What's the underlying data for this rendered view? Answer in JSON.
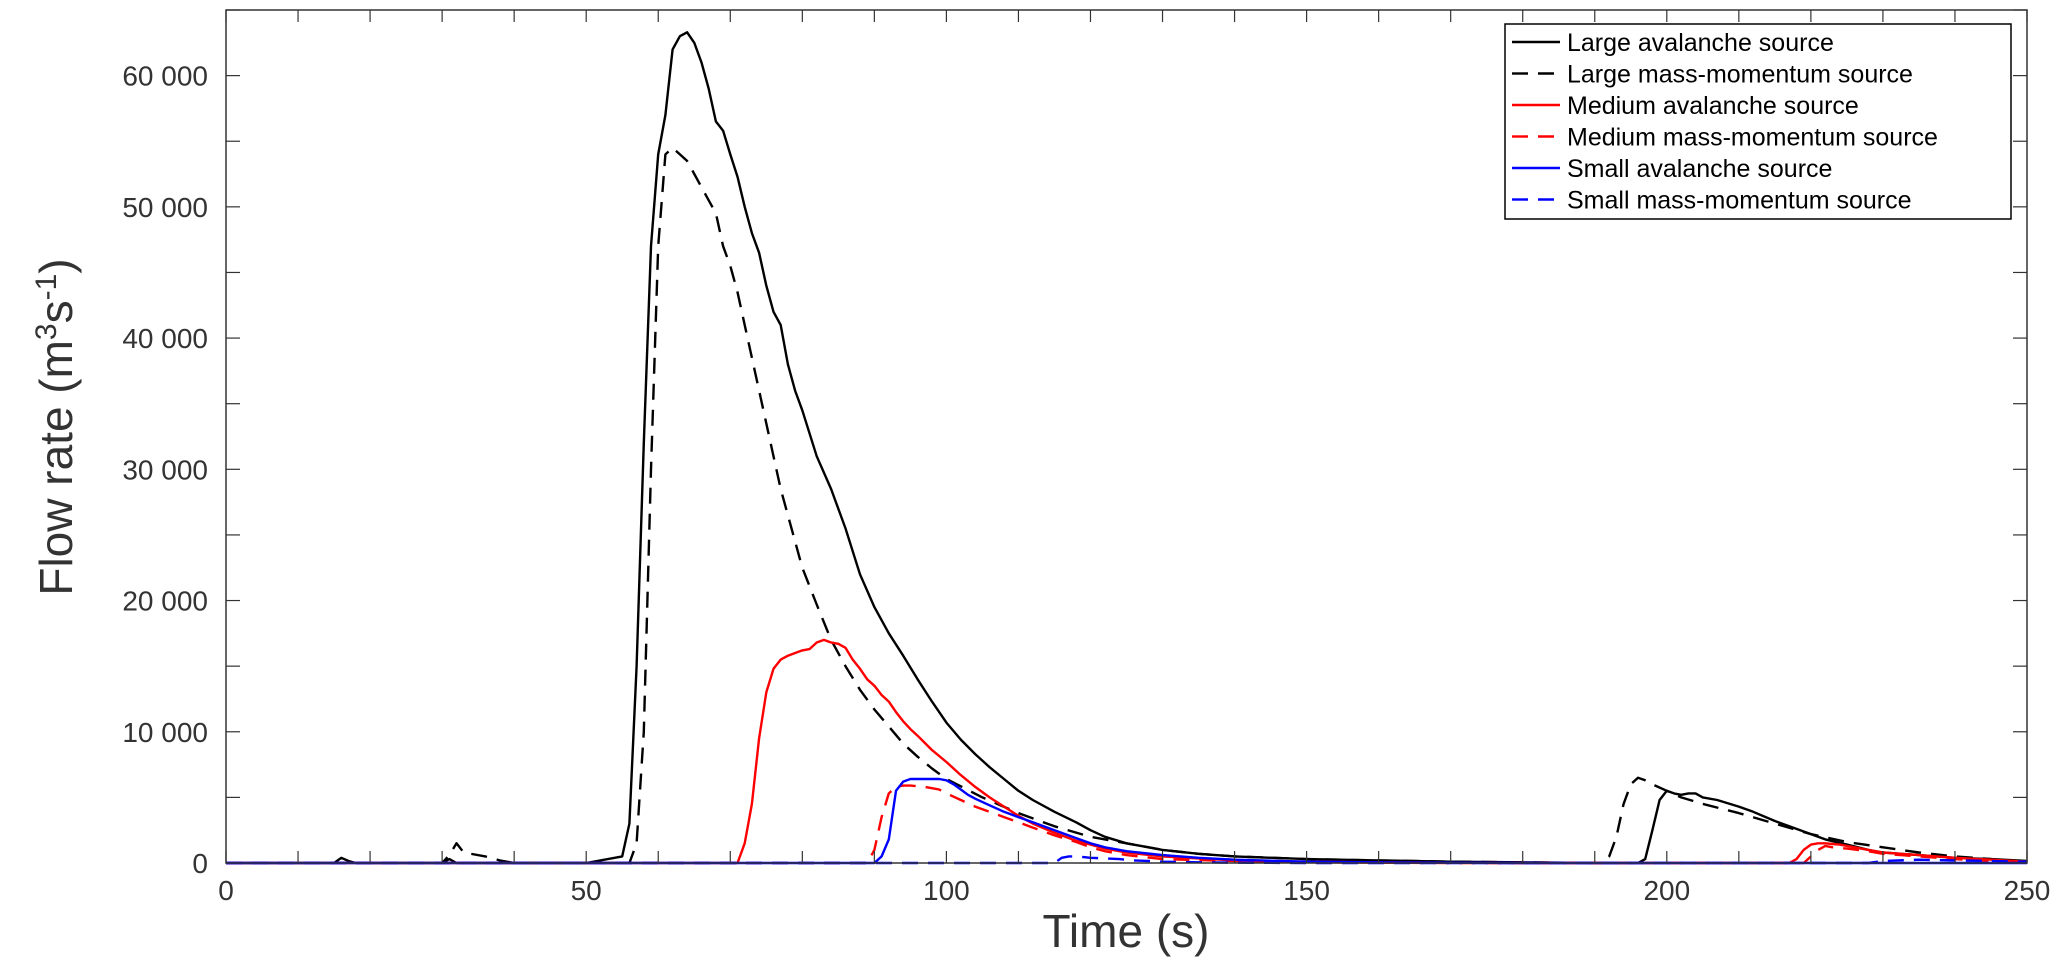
{
  "chart_data": {
    "type": "line",
    "title": "",
    "xlabel": "Time (s)",
    "ylabel": {
      "base": "Flow rate  (m",
      "sup1": "3",
      "mid": "s",
      "sup2": "-1",
      "end": ")"
    },
    "xlim": [
      0,
      250
    ],
    "ylim": [
      0,
      65000
    ],
    "xticks": [
      0,
      50,
      100,
      150,
      200,
      250
    ],
    "xtick_labels": [
      "0",
      "50",
      "100",
      "150",
      "200",
      "250"
    ],
    "yticks": [
      0,
      10000,
      20000,
      30000,
      40000,
      50000,
      60000
    ],
    "ytick_labels": [
      "0",
      "10 000",
      "20 000",
      "30 000",
      "40 000",
      "50 000",
      "60 000"
    ],
    "grid": false,
    "legend_position": "top-right",
    "series": [
      {
        "name": "Large avalanche source",
        "color": "#000000",
        "dash": "solid",
        "x": [
          0,
          15,
          16,
          17,
          18,
          25,
          30,
          31,
          32,
          33,
          34,
          50,
          55,
          56,
          57,
          58,
          59,
          60,
          61,
          62,
          63,
          64,
          65,
          66,
          67,
          68,
          69,
          70,
          71,
          72,
          73,
          74,
          75,
          76,
          77,
          78,
          79,
          80,
          82,
          84,
          86,
          88,
          90,
          92,
          94,
          96,
          98,
          100,
          102,
          104,
          106,
          108,
          110,
          112,
          115,
          118,
          120,
          122,
          125,
          130,
          135,
          140,
          150,
          160,
          170,
          180,
          190,
          196,
          197,
          198,
          199,
          200,
          201,
          202,
          203,
          204,
          205,
          207,
          210,
          212,
          215,
          218,
          220,
          222,
          225,
          228,
          230,
          235,
          240,
          245,
          250
        ],
        "y": [
          0,
          0,
          400,
          150,
          0,
          0,
          0,
          300,
          0,
          0,
          0,
          0,
          500,
          3000,
          15000,
          32000,
          47000,
          54000,
          57000,
          62000,
          63000,
          63300,
          62500,
          61000,
          59000,
          56500,
          55800,
          54000,
          52300,
          50000,
          48000,
          46500,
          44000,
          42000,
          41000,
          38000,
          36000,
          34500,
          31000,
          28500,
          25500,
          22000,
          19500,
          17500,
          15800,
          14000,
          12300,
          10700,
          9400,
          8300,
          7300,
          6400,
          5500,
          4800,
          3900,
          3100,
          2500,
          2000,
          1500,
          1000,
          700,
          500,
          300,
          200,
          100,
          50,
          0,
          0,
          300,
          2500,
          4800,
          5500,
          5300,
          5200,
          5300,
          5300,
          5000,
          4800,
          4300,
          3900,
          3200,
          2600,
          2200,
          1800,
          1400,
          1000,
          800,
          600,
          400,
          300,
          150
        ]
      },
      {
        "name": "Large mass-momentum source",
        "color": "#000000",
        "dash": "16 10",
        "x": [
          0,
          15,
          30,
          31,
          32,
          33,
          34,
          36,
          38,
          40,
          42,
          56,
          57,
          58,
          59,
          60,
          61,
          62,
          63,
          64,
          65,
          66,
          67,
          68,
          69,
          70,
          71,
          72,
          73,
          74,
          75,
          76,
          77,
          78,
          79,
          80,
          82,
          84,
          86,
          88,
          90,
          92,
          94,
          96,
          98,
          100,
          105,
          110,
          115,
          120,
          125,
          130,
          135,
          140,
          150,
          160,
          170,
          180,
          190,
          191,
          192,
          193,
          194,
          195,
          196,
          197,
          198,
          200,
          202,
          205,
          210,
          215,
          220,
          225,
          230,
          235,
          240,
          245,
          250
        ],
        "y": [
          0,
          0,
          0,
          600,
          1500,
          800,
          700,
          500,
          200,
          0,
          0,
          0,
          1500,
          10000,
          30000,
          47000,
          54000,
          54500,
          54000,
          53500,
          52500,
          51500,
          50500,
          49500,
          47000,
          45500,
          43500,
          41000,
          38500,
          36000,
          33500,
          31000,
          28500,
          26500,
          24500,
          22500,
          19700,
          17000,
          15000,
          13200,
          11700,
          10400,
          9100,
          8100,
          7200,
          6400,
          5000,
          3800,
          2800,
          2000,
          1500,
          1000,
          700,
          500,
          300,
          200,
          100,
          50,
          0,
          0,
          500,
          2000,
          4500,
          6000,
          6500,
          6300,
          6000,
          5500,
          5000,
          4500,
          3800,
          3000,
          2200,
          1600,
          1200,
          800,
          500,
          300,
          100
        ]
      },
      {
        "name": "Medium avalanche source",
        "color": "#ff0000",
        "dash": "solid",
        "x": [
          0,
          71,
          72,
          73,
          74,
          75,
          76,
          77,
          78,
          79,
          80,
          81,
          82,
          83,
          84,
          85,
          86,
          87,
          88,
          89,
          90,
          91,
          92,
          93,
          94,
          95,
          96,
          98,
          100,
          102,
          104,
          106,
          108,
          110,
          112,
          115,
          118,
          120,
          122,
          125,
          130,
          135,
          140,
          150,
          160,
          170,
          180,
          190,
          200,
          210,
          217,
          218,
          219,
          220,
          221,
          222,
          223,
          224,
          225,
          228,
          230,
          235,
          240,
          245,
          250
        ],
        "y": [
          0,
          0,
          1500,
          4500,
          9500,
          13000,
          14800,
          15500,
          15800,
          16000,
          16200,
          16300,
          16800,
          17000,
          16800,
          16700,
          16400,
          15500,
          14800,
          14000,
          13500,
          12800,
          12300,
          11500,
          10800,
          10200,
          9700,
          8600,
          7700,
          6700,
          5800,
          5000,
          4300,
          3600,
          3000,
          2300,
          1700,
          1400,
          1100,
          800,
          500,
          350,
          200,
          100,
          50,
          20,
          0,
          0,
          0,
          0,
          0,
          300,
          1000,
          1400,
          1500,
          1500,
          1450,
          1400,
          1300,
          1000,
          800,
          600,
          400,
          250,
          100
        ]
      },
      {
        "name": "Medium mass-momentum source",
        "color": "#ff0000",
        "dash": "16 10",
        "x": [
          0,
          89,
          90,
          91,
          92,
          93,
          94,
          95,
          96,
          97,
          98,
          99,
          100,
          102,
          104,
          106,
          108,
          110,
          112,
          115,
          118,
          120,
          122,
          125,
          130,
          140,
          150,
          160,
          170,
          180,
          190,
          200,
          210,
          219,
          220,
          221,
          222,
          223,
          225,
          228,
          230,
          235,
          240,
          245,
          250
        ],
        "y": [
          0,
          0,
          1000,
          3500,
          5300,
          5800,
          5900,
          5900,
          5850,
          5800,
          5700,
          5600,
          5300,
          4800,
          4300,
          3900,
          3500,
          3100,
          2700,
          2100,
          1600,
          1200,
          900,
          600,
          300,
          150,
          50,
          20,
          0,
          0,
          0,
          0,
          0,
          0,
          500,
          1000,
          1300,
          1200,
          1100,
          900,
          700,
          500,
          300,
          150,
          50
        ]
      },
      {
        "name": "Small avalanche source",
        "color": "#0000ff",
        "dash": "solid",
        "x": [
          0,
          90,
          91,
          92,
          93,
          94,
          95,
          96,
          97,
          98,
          99,
          100,
          101,
          102,
          103,
          104,
          106,
          108,
          110,
          112,
          115,
          118,
          120,
          122,
          125,
          130,
          135,
          140,
          150,
          160,
          170,
          180,
          190,
          200,
          210,
          220,
          230,
          240,
          250
        ],
        "y": [
          0,
          0,
          500,
          1800,
          5500,
          6200,
          6400,
          6400,
          6400,
          6400,
          6400,
          6300,
          6000,
          5600,
          5200,
          4900,
          4400,
          3900,
          3500,
          3100,
          2500,
          1900,
          1500,
          1200,
          900,
          600,
          400,
          250,
          100,
          50,
          20,
          0,
          0,
          0,
          0,
          0,
          0,
          0,
          0
        ]
      },
      {
        "name": "Small mass-momentum source",
        "color": "#0000ff",
        "dash": "16 10",
        "x": [
          0,
          115,
          116,
          117,
          118,
          119,
          120,
          122,
          124,
          126,
          128,
          130,
          135,
          140,
          150,
          160,
          170,
          180,
          190,
          200,
          210,
          220,
          225,
          228,
          230,
          232,
          235,
          240,
          245,
          250
        ],
        "y": [
          0,
          0,
          400,
          500,
          500,
          450,
          400,
          350,
          300,
          200,
          150,
          100,
          50,
          20,
          0,
          0,
          0,
          0,
          0,
          0,
          0,
          0,
          0,
          0,
          150,
          200,
          250,
          200,
          150,
          100
        ]
      }
    ]
  }
}
